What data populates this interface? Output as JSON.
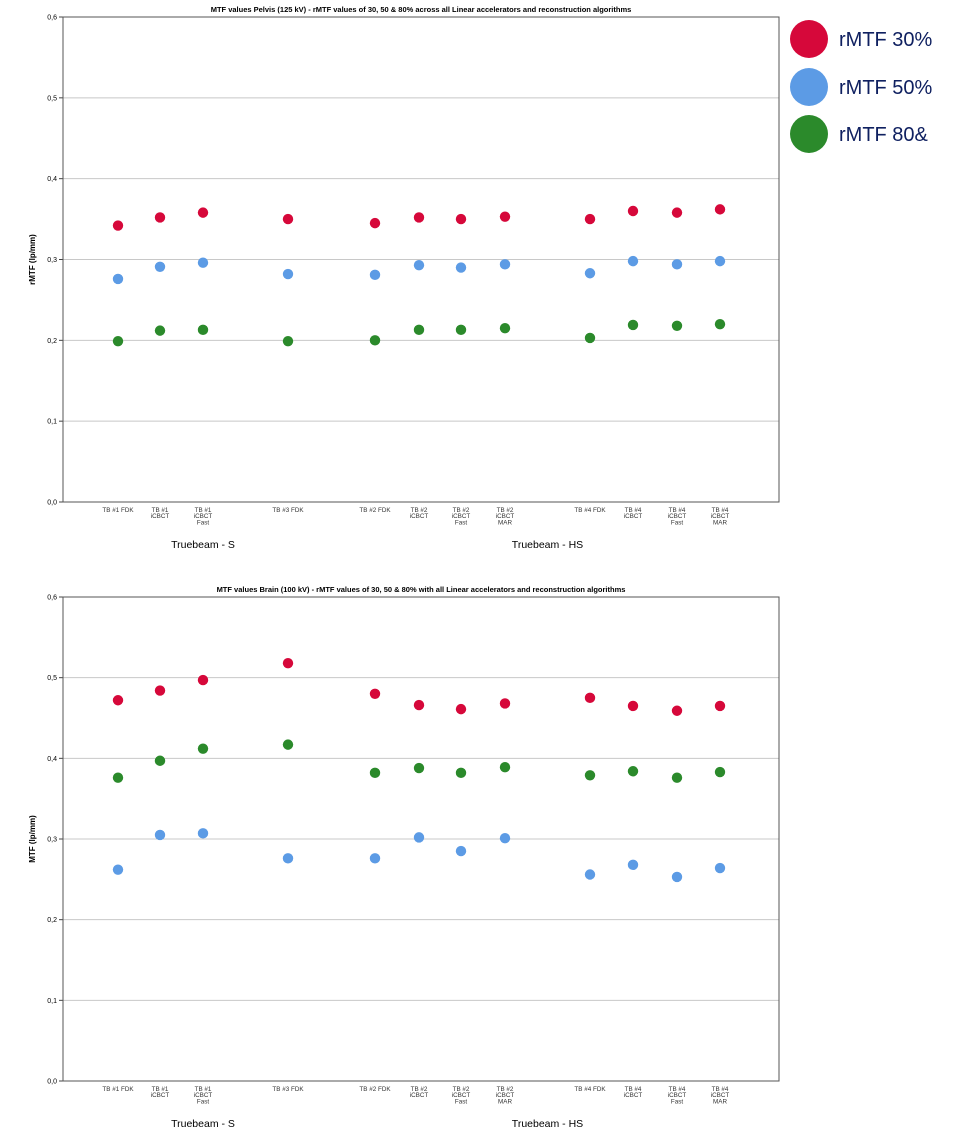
{
  "legend": [
    {
      "label": "rMTF 30%",
      "color": "#d6083a"
    },
    {
      "label": "rMTF 50%",
      "color": "#5c9be5"
    },
    {
      "label": "rMTF 80&",
      "color": "#2b8a2b"
    }
  ],
  "chart_data": [
    {
      "type": "scatter",
      "title": "MTF values Pelvis (125 kV) - rMTF values of 30, 50 & 80% across all Linear accelerators and reconstruction algorithms",
      "ylabel": "rMTF (lp/mm)",
      "ylim": [
        0,
        0.6
      ],
      "yticks": [
        "0,0",
        "0,1",
        "0,2",
        "0,3",
        "0,4",
        "0,5",
        "0,6"
      ],
      "grid": true,
      "categories": [
        [
          "TB #1 FDK"
        ],
        [
          "TB #1",
          "iCBCT"
        ],
        [
          "TB #1",
          "iCBCT",
          "Fast"
        ],
        [
          "TB #3 FDK"
        ],
        [
          "TB #2 FDK"
        ],
        [
          "TB #2",
          "iCBCT"
        ],
        [
          "TB #2",
          "iCBCT",
          "Fast"
        ],
        [
          "TB #2",
          "iCBCT",
          "MAR"
        ],
        [
          "TB #4 FDK"
        ],
        [
          "TB #4",
          "iCBCT"
        ],
        [
          "TB #4",
          "iCBCT",
          "Fast"
        ],
        [
          "TB #4",
          "iCBCT",
          "MAR"
        ]
      ],
      "groups": [
        {
          "label": "Truebeam - S",
          "from": 0,
          "to": 3
        },
        {
          "label": "Truebeam - HS",
          "from": 4,
          "to": 11
        }
      ],
      "series": [
        {
          "name": "rMTF 30%",
          "color": "#d6083a",
          "values": [
            0.342,
            0.352,
            0.358,
            0.35,
            0.345,
            0.352,
            0.35,
            0.353,
            0.35,
            0.36,
            0.358,
            0.362
          ]
        },
        {
          "name": "rMTF 50%",
          "color": "#5c9be5",
          "values": [
            0.276,
            0.291,
            0.296,
            0.282,
            0.281,
            0.293,
            0.29,
            0.294,
            0.283,
            0.298,
            0.294,
            0.298
          ]
        },
        {
          "name": "rMTF 80&",
          "color": "#2b8a2b",
          "values": [
            0.199,
            0.212,
            0.213,
            0.199,
            0.2,
            0.213,
            0.213,
            0.215,
            0.203,
            0.219,
            0.218,
            0.22
          ]
        }
      ]
    },
    {
      "type": "scatter",
      "title": "MTF values Brain (100 kV) - rMTF values of 30, 50 & 80% with all Linear accelerators and reconstruction algorithms",
      "ylabel": "MTF  (lp/mm)",
      "ylim": [
        0,
        0.6
      ],
      "yticks": [
        "0,0",
        "0,1",
        "0,2",
        "0,3",
        "0,4",
        "0,5",
        "0,6"
      ],
      "grid": true,
      "categories": [
        [
          "TB #1 FDK"
        ],
        [
          "TB #1",
          "iCBCT"
        ],
        [
          "TB #1",
          "iCBCT",
          "Fast"
        ],
        [
          "TB #3 FDK"
        ],
        [
          "TB #2 FDK"
        ],
        [
          "TB #2",
          "iCBCT"
        ],
        [
          "TB #2",
          "iCBCT",
          "Fast"
        ],
        [
          "TB #2",
          "iCBCT",
          "MAR"
        ],
        [
          "TB #4 FDK"
        ],
        [
          "TB #4",
          "iCBCT"
        ],
        [
          "TB #4",
          "iCBCT",
          "Fast"
        ],
        [
          "TB #4",
          "iCBCT",
          "MAR"
        ]
      ],
      "groups": [
        {
          "label": "Truebeam - S",
          "from": 0,
          "to": 3
        },
        {
          "label": "Truebeam - HS",
          "from": 4,
          "to": 11
        }
      ],
      "series": [
        {
          "name": "rMTF 30%",
          "color": "#d6083a",
          "values": [
            0.472,
            0.484,
            0.497,
            0.518,
            0.48,
            0.466,
            0.461,
            0.468,
            0.475,
            0.465,
            0.459,
            0.465
          ]
        },
        {
          "name": "rMTF 50%",
          "color": "#5c9be5",
          "values": [
            0.262,
            0.305,
            0.307,
            0.276,
            0.276,
            0.302,
            0.285,
            0.301,
            0.256,
            0.268,
            0.253,
            0.264
          ]
        },
        {
          "name": "rMTF 80&",
          "color": "#2b8a2b",
          "values": [
            0.376,
            0.397,
            0.412,
            0.417,
            0.382,
            0.388,
            0.382,
            0.389,
            0.379,
            0.384,
            0.376,
            0.383
          ]
        }
      ]
    }
  ]
}
